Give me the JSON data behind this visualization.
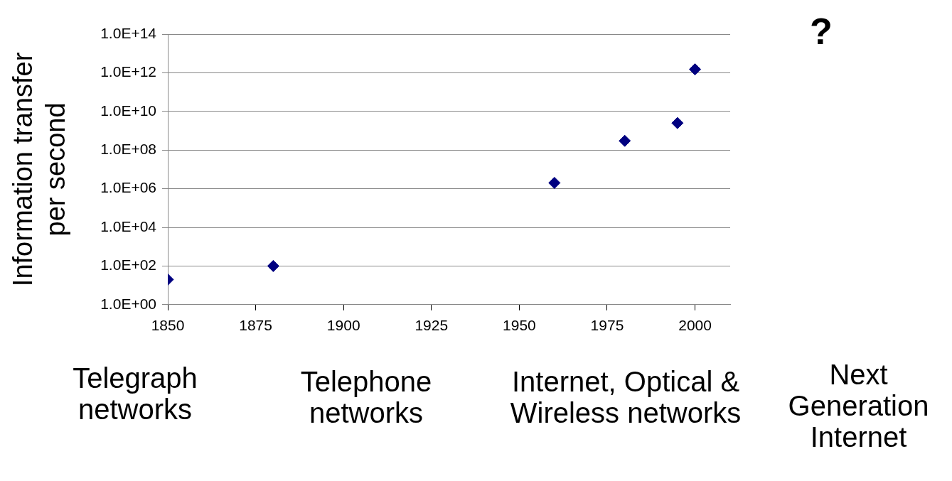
{
  "chart_data": {
    "type": "scatter",
    "ylabel": "Information transfer per second",
    "x": [
      1850,
      1880,
      1960,
      1980,
      1995,
      2000
    ],
    "series": [
      {
        "color": "#000080",
        "values": [
          20,
          100,
          2000000,
          300000000,
          2500000000,
          1500000000000
        ]
      }
    ],
    "log": "y",
    "marker": "diamond",
    "grid": "y",
    "legend": false,
    "xlim": [
      1850,
      2010
    ],
    "xticks": [
      1850,
      1875,
      1900,
      1925,
      1950,
      1975,
      2000
    ],
    "ylim": [
      1,
      100000000000000
    ],
    "yticks": [
      {
        "value": 1,
        "label": "1.0E+00"
      },
      {
        "value": 100,
        "label": "1.0E+02"
      },
      {
        "value": 10000,
        "label": "1.0E+04"
      },
      {
        "value": 1000000,
        "label": "1.0E+06"
      },
      {
        "value": 100000000,
        "label": "1.0E+08"
      },
      {
        "value": 10000000000,
        "label": "1.0E+10"
      },
      {
        "value": 1000000000000,
        "label": "1.0E+12"
      },
      {
        "value": 100000000000000,
        "label": "1.0E+14"
      }
    ],
    "annotations": [
      "?",
      "Telegraph networks",
      "Telephone networks",
      "Internet, Optical & Wireless networks",
      "Next Generation Internet"
    ]
  }
}
